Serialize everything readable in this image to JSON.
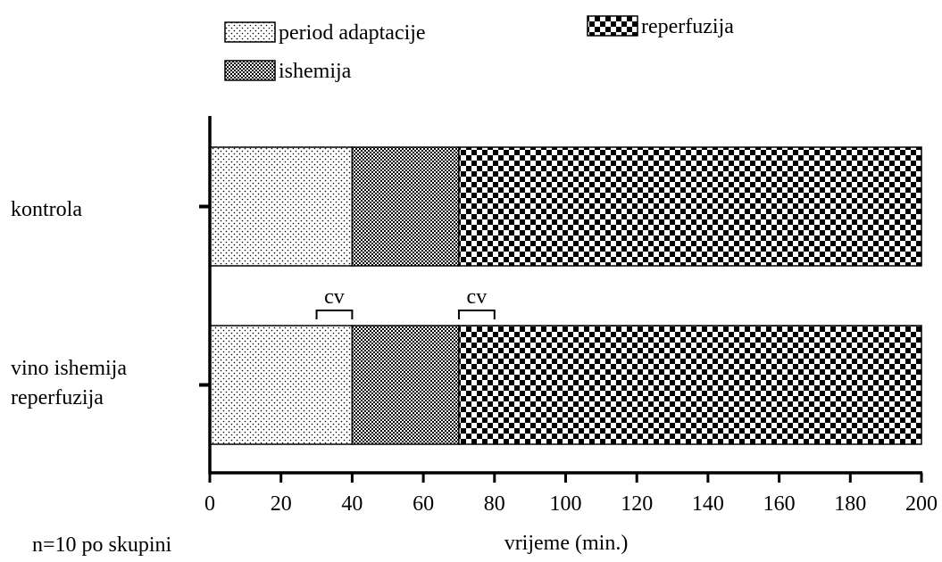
{
  "chart_data": {
    "type": "bar",
    "orientation": "horizontal",
    "stacked": true,
    "categories": [
      "kontrola",
      "vino ishemija reperfuzija"
    ],
    "category_lines": [
      [
        "kontrola"
      ],
      [
        "vino ishemija",
        "reperfuzija"
      ]
    ],
    "phases": [
      {
        "name": "period adaptacije",
        "pattern": "dots"
      },
      {
        "name": "ishemija",
        "pattern": "fine-checker"
      },
      {
        "name": "reperfuzija",
        "pattern": "coarse-checker"
      }
    ],
    "rows": [
      {
        "category": "kontrola",
        "segments": [
          {
            "phase": "period adaptacije",
            "start": 0,
            "end": 40
          },
          {
            "phase": "ishemija",
            "start": 40,
            "end": 70
          },
          {
            "phase": "reperfuzija",
            "start": 70,
            "end": 200
          }
        ]
      },
      {
        "category": "vino ishemija reperfuzija",
        "segments": [
          {
            "phase": "period adaptacije",
            "start": 0,
            "end": 40
          },
          {
            "phase": "ishemija",
            "start": 40,
            "end": 70
          },
          {
            "phase": "reperfuzija",
            "start": 70,
            "end": 200
          }
        ]
      }
    ],
    "annotations": [
      {
        "text": "cv",
        "row": "vino ishemija reperfuzija",
        "start": 30,
        "end": 40
      },
      {
        "text": "cv",
        "row": "vino ishemija reperfuzija",
        "start": 70,
        "end": 80
      }
    ],
    "xlabel": "vrijeme (min.)",
    "xlim": [
      0,
      200
    ],
    "xticks": [
      0,
      20,
      40,
      60,
      80,
      100,
      120,
      140,
      160,
      180,
      200
    ],
    "note": "n=10 po skupini",
    "legend_position": "top",
    "grid": false
  }
}
